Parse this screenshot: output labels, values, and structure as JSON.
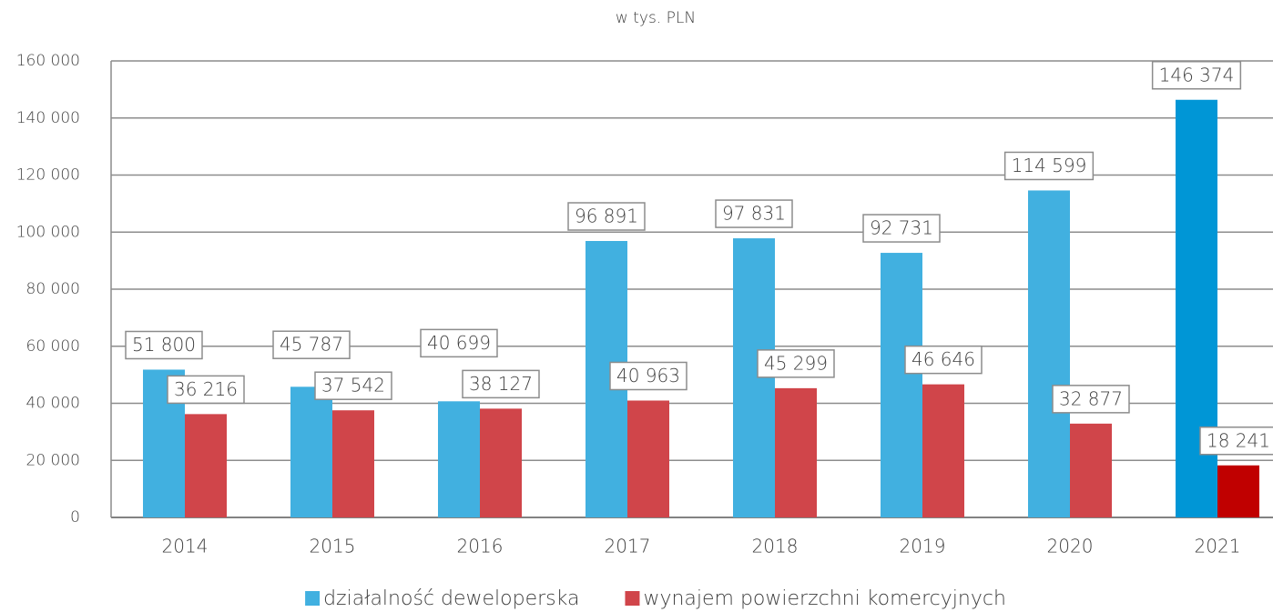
{
  "chart_data": {
    "type": "bar",
    "title": "w tys. PLN",
    "categories": [
      "2014",
      "2015",
      "2016",
      "2017",
      "2018",
      "2019",
      "2020",
      "2021"
    ],
    "series": [
      {
        "name": "działalność deweloperska",
        "color": "#41b0e0",
        "colors": [
          "#41b0e0",
          "#41b0e0",
          "#41b0e0",
          "#41b0e0",
          "#41b0e0",
          "#41b0e0",
          "#41b0e0",
          "#0096d6"
        ],
        "values": [
          51800,
          45787,
          40699,
          96891,
          97831,
          92731,
          114599,
          146374
        ],
        "value_labels": [
          "51 800",
          "45 787",
          "40 699",
          "96 891",
          "97 831",
          "92 731",
          "114 599",
          "146 374"
        ]
      },
      {
        "name": "wynajem powierzchni komercyjnych",
        "color": "#d0454a",
        "colors": [
          "#d0454a",
          "#d0454a",
          "#d0454a",
          "#d0454a",
          "#d0454a",
          "#d0454a",
          "#d0454a",
          "#c00000"
        ],
        "values": [
          36216,
          37542,
          38127,
          40963,
          45299,
          46646,
          32877,
          18241
        ],
        "value_labels": [
          "36 216",
          "37 542",
          "38 127",
          "40 963",
          "45 299",
          "46 646",
          "32 877",
          "18 241"
        ]
      }
    ],
    "ylim": [
      0,
      160000
    ],
    "yticks": [
      0,
      {
        "value": 20000,
        "label": "20 000"
      },
      {
        "value": 40000,
        "label": "40 000"
      },
      {
        "value": 60000,
        "label": "60 000"
      },
      {
        "value": 80000,
        "label": "80 000"
      },
      {
        "value": 100000,
        "label": "100 000"
      },
      {
        "value": 120000,
        "label": "120 000"
      },
      {
        "value": 140000,
        "label": "140 000"
      },
      {
        "value": 160000,
        "label": "160 000"
      }
    ],
    "grid": true,
    "legend": "bottom"
  }
}
